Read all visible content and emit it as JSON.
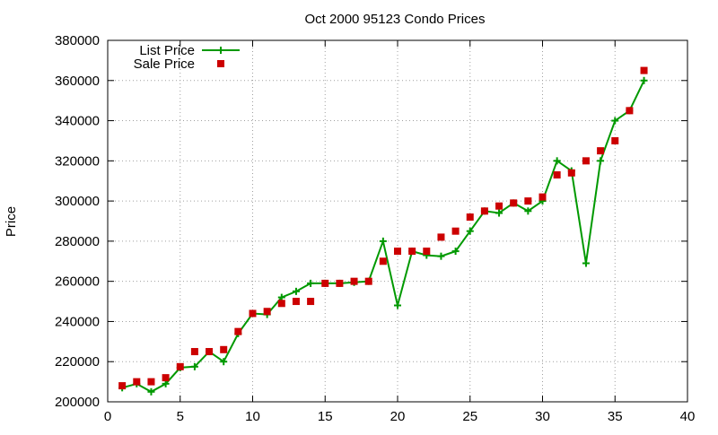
{
  "chart_data": {
    "type": "line",
    "title": "Oct 2000 95123 Condo Prices",
    "xlabel": "",
    "ylabel": "Price",
    "xlim": [
      0,
      40
    ],
    "ylim": [
      200000,
      380000
    ],
    "x_ticks": [
      0,
      5,
      10,
      15,
      20,
      25,
      30,
      35,
      40
    ],
    "y_ticks": [
      200000,
      220000,
      240000,
      260000,
      280000,
      300000,
      320000,
      340000,
      360000,
      380000
    ],
    "grid": true,
    "legend_position": "top-left",
    "series": [
      {
        "name": "List Price",
        "style": "line+cross",
        "color": "#009900",
        "x": [
          1,
          2,
          3,
          4,
          5,
          6,
          7,
          8,
          9,
          10,
          11,
          12,
          13,
          14,
          15,
          16,
          17,
          18,
          19,
          20,
          21,
          22,
          23,
          24,
          25,
          26,
          27,
          28,
          29,
          30,
          31,
          32,
          33,
          34,
          35,
          36,
          37
        ],
        "y": [
          207000,
          209000,
          205000,
          209000,
          217000,
          217500,
          225000,
          220000,
          234000,
          244000,
          243500,
          252000,
          255000,
          259000,
          259000,
          259000,
          259500,
          260000,
          280000,
          248000,
          275000,
          273000,
          272500,
          275000,
          285000,
          295000,
          294000,
          299000,
          295000,
          300000,
          320000,
          315000,
          269000,
          320000,
          340000,
          345000,
          360000
        ]
      },
      {
        "name": "Sale Price",
        "style": "points",
        "color": "#cc0000",
        "x": [
          1,
          2,
          3,
          4,
          5,
          6,
          7,
          8,
          9,
          10,
          11,
          12,
          13,
          14,
          15,
          16,
          17,
          18,
          19,
          20,
          21,
          22,
          23,
          24,
          25,
          26,
          27,
          28,
          29,
          30,
          31,
          32,
          33,
          34,
          35,
          36,
          37
        ],
        "y": [
          208000,
          210000,
          210000,
          212000,
          217500,
          225000,
          225000,
          226000,
          235000,
          244000,
          245000,
          249000,
          250000,
          250000,
          259000,
          259000,
          260000,
          260000,
          270000,
          275000,
          275000,
          275000,
          282000,
          285000,
          292000,
          295000,
          297500,
          299000,
          300000,
          302000,
          313000,
          314000,
          320000,
          325000,
          330000,
          345000,
          365000
        ]
      }
    ]
  }
}
